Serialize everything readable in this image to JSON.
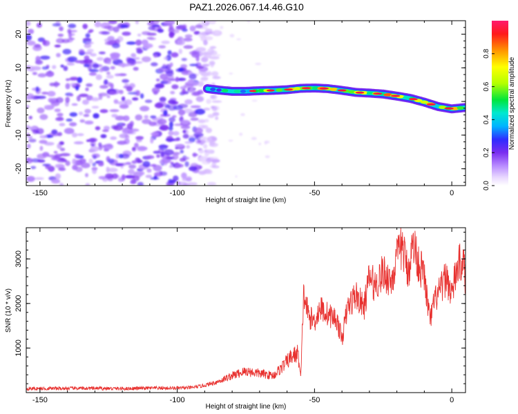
{
  "title": "PAZ1.2026.067.14.46.G10",
  "colors": {
    "snr_line": "#e8312f",
    "ridge_low": "#6a2bff",
    "noise_light": "#d9c2ff",
    "noise_dark": "#7a2df0"
  },
  "colorbar_colors": [
    "#ffffff",
    "#e9d8ff",
    "#b98cff",
    "#7a2df0",
    "#2f2cff",
    "#00b4ff",
    "#00e8d0",
    "#00e63c",
    "#b4ff00",
    "#ffff00",
    "#ff9400",
    "#ff1a1a",
    "#ff1a6e"
  ],
  "chart_data": [
    {
      "type": "heatmap",
      "name": "spectrogram",
      "xlabel": "Height of straight line (km)",
      "ylabel": "Frequency (Hz)",
      "xlim": [
        -155,
        5
      ],
      "ylim": [
        -25,
        24
      ],
      "xticks": [
        -150,
        -100,
        -50,
        0
      ],
      "yticks": [
        -20,
        -10,
        0,
        10,
        20
      ],
      "xtick_labels": [
        "-150",
        "-100",
        "-50",
        "0"
      ],
      "ytick_labels": [
        "-20",
        "-10",
        "0",
        "10",
        "20"
      ],
      "noise_region_x": [
        -155,
        -89
      ],
      "ridge": {
        "x": [
          -89,
          -85,
          -80,
          -75,
          -70,
          -65,
          -60,
          -55,
          -50,
          -45,
          -40,
          -35,
          -30,
          -25,
          -20,
          -15,
          -10,
          -5,
          0,
          5
        ],
        "freq": [
          3.8,
          3.4,
          3.0,
          3.0,
          3.2,
          3.3,
          3.5,
          3.9,
          4.0,
          3.8,
          3.3,
          2.7,
          2.5,
          2.2,
          1.6,
          0.9,
          -0.2,
          -1.5,
          -2.2,
          -1.8
        ],
        "amplitude": [
          0.35,
          0.45,
          0.6,
          0.55,
          0.7,
          0.8,
          0.85,
          0.9,
          0.95,
          0.92,
          0.88,
          0.85,
          0.9,
          0.95,
          0.93,
          0.85,
          0.9,
          0.88,
          0.95,
          0.6
        ]
      },
      "colorbar": {
        "label": "Normalized spectral amplitude",
        "ticks": [
          0.0,
          0.2,
          0.4,
          0.6,
          0.8
        ],
        "tick_labels": [
          "0.0",
          "0.2",
          "0.4",
          "0.6",
          "0.8"
        ],
        "range": [
          0,
          1
        ]
      }
    },
    {
      "type": "line",
      "name": "snr",
      "xlabel": "Height of straight line (km)",
      "ylabel": "SNR (10 * v/v)",
      "xlim": [
        -155,
        5
      ],
      "ylim": [
        0,
        3700
      ],
      "xticks": [
        -150,
        -100,
        -50,
        0
      ],
      "yticks": [
        1000,
        2000,
        3000
      ],
      "xtick_labels": [
        "-150",
        "-100",
        "-50",
        "0"
      ],
      "ytick_labels": [
        "1000",
        "2000",
        "3000"
      ],
      "series": [
        {
          "name": "SNR",
          "x": [
            -155,
            -150,
            -140,
            -130,
            -120,
            -110,
            -100,
            -95,
            -90,
            -85,
            -80,
            -75,
            -70,
            -65,
            -62,
            -60,
            -58,
            -56,
            -55,
            -54,
            -52,
            -50,
            -48,
            -45,
            -42,
            -40,
            -38,
            -35,
            -32,
            -30,
            -28,
            -25,
            -22,
            -20,
            -18,
            -16,
            -14,
            -12,
            -10,
            -8,
            -6,
            -4,
            -2,
            0,
            2,
            4,
            5
          ],
          "y": [
            90,
            90,
            95,
            95,
            90,
            100,
            100,
            110,
            160,
            250,
            380,
            480,
            430,
            380,
            560,
            700,
            820,
            880,
            300,
            2200,
            1700,
            1600,
            1900,
            1750,
            1650,
            1200,
            1900,
            2200,
            1900,
            2600,
            2400,
            2700,
            2500,
            3000,
            3300,
            2700,
            3350,
            2900,
            2600,
            1600,
            2100,
            2300,
            2600,
            2200,
            2800,
            3000,
            2500
          ]
        }
      ]
    }
  ]
}
